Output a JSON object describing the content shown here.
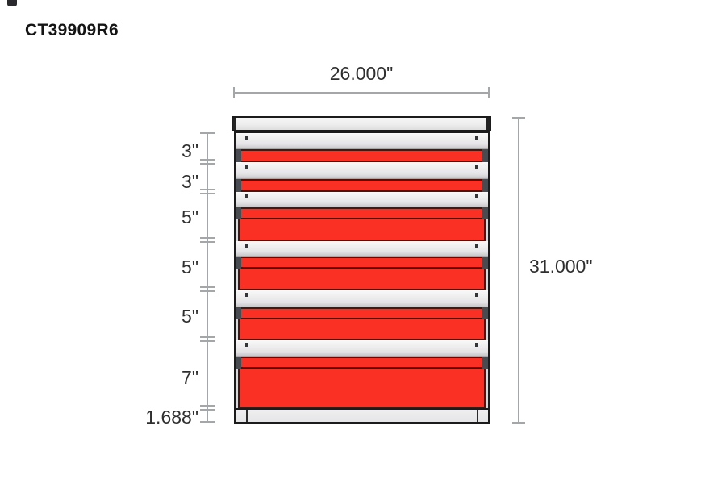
{
  "title": "CT39909R6",
  "dimensions": {
    "overall_width": "26.000\"",
    "overall_height": "31.000\"",
    "drawer_heights": [
      "3\"",
      "3\"",
      "5\"",
      "5\"",
      "5\"",
      "7\""
    ],
    "base_height": "1.688\""
  },
  "drawer_count": 6,
  "colors": {
    "drawer_red": "#f93023",
    "drawer_red_dark": "#551008",
    "handle_cap": "#484c50",
    "cabinet_light": "#eeedee",
    "cabinet_mid": "#d9d8da",
    "cabinet_border": "#1b1b1b",
    "dim_line": "#a3a7aa",
    "text": "#2f2f2f",
    "background": "#ffffff"
  }
}
